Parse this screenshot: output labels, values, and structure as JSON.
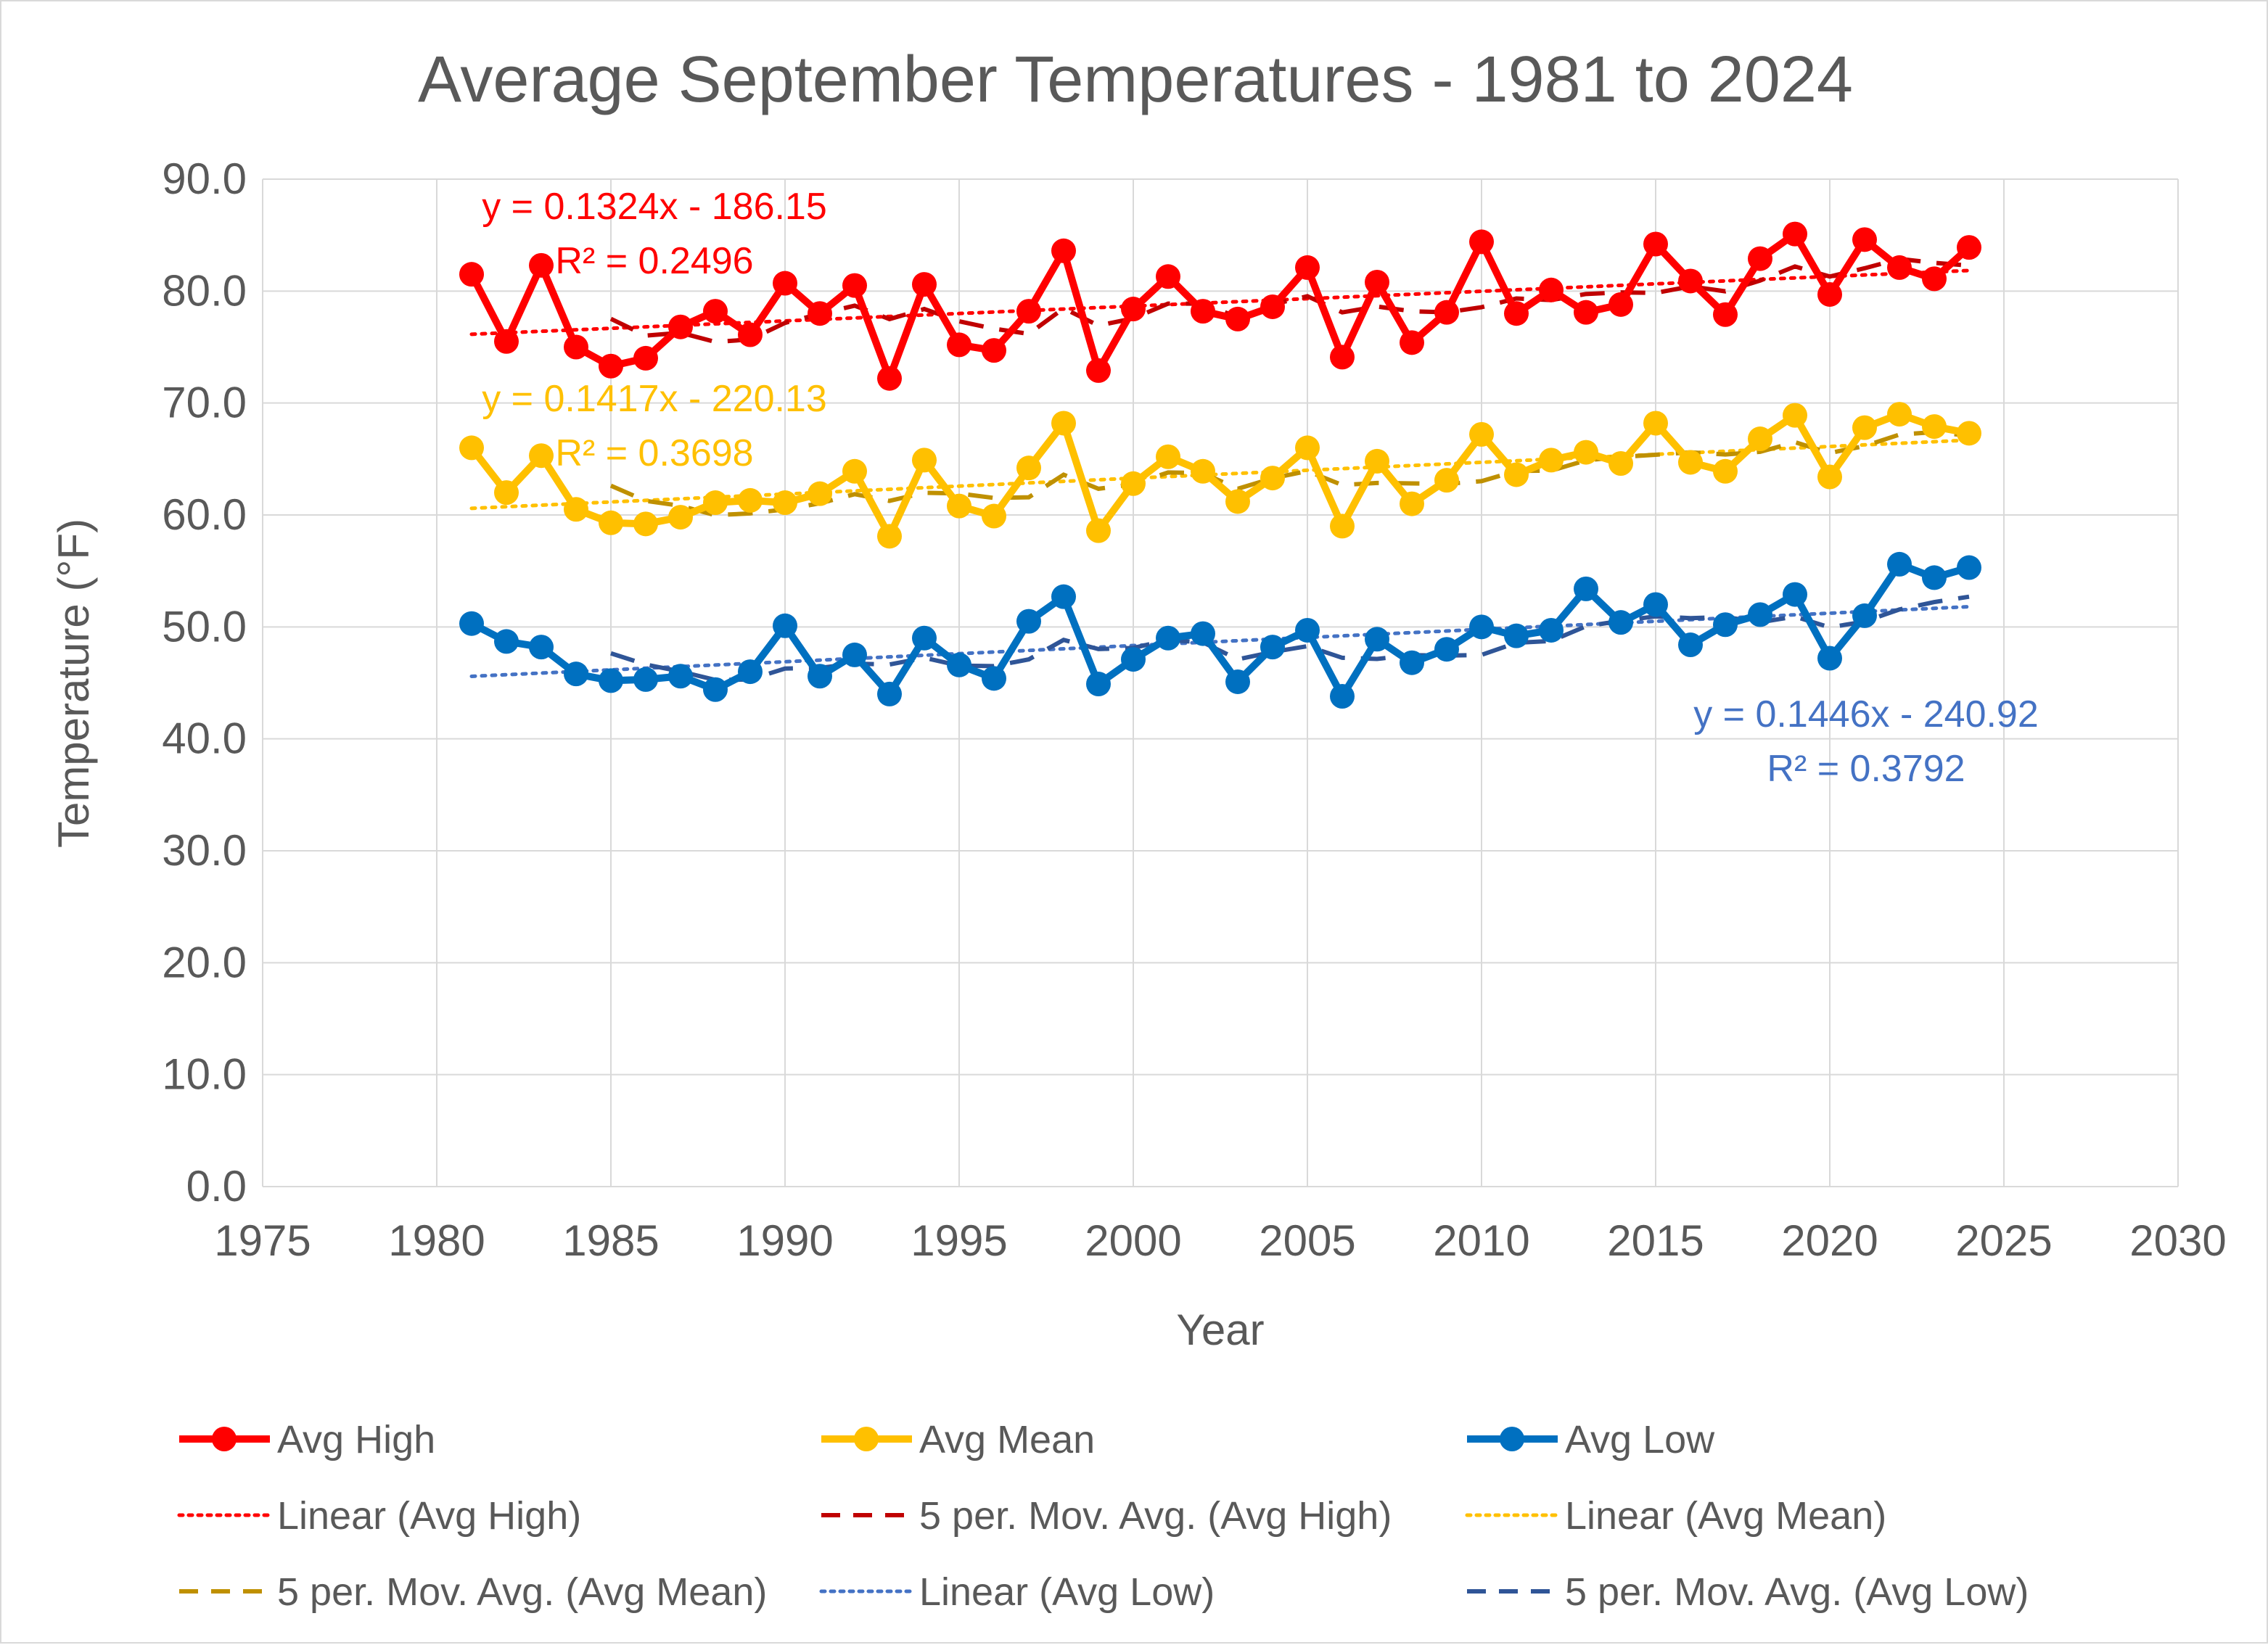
{
  "chart_data": {
    "type": "line",
    "title": "Average September Temperatures - 1981 to 2024",
    "xlabel": "Year",
    "ylabel": "Temperature (°F)",
    "xlim": [
      1975,
      2030
    ],
    "ylim": [
      0,
      90
    ],
    "x_ticks": [
      "1975",
      "1980",
      "1985",
      "1990",
      "1995",
      "2000",
      "2005",
      "2010",
      "2015",
      "2020",
      "2025",
      "2030"
    ],
    "y_ticks": [
      "0.0",
      "10.0",
      "20.0",
      "30.0",
      "40.0",
      "50.0",
      "60.0",
      "70.0",
      "80.0",
      "90.0"
    ],
    "grid": true,
    "x": [
      1981,
      1982,
      1983,
      1984,
      1985,
      1986,
      1987,
      1988,
      1989,
      1990,
      1991,
      1992,
      1993,
      1994,
      1995,
      1996,
      1997,
      1998,
      1999,
      2000,
      2001,
      2002,
      2003,
      2004,
      2005,
      2006,
      2007,
      2008,
      2009,
      2010,
      2011,
      2012,
      2013,
      2014,
      2015,
      2016,
      2017,
      2018,
      2019,
      2020,
      2021,
      2022,
      2023,
      2024
    ],
    "series": [
      {
        "name": "Avg High",
        "color": "#ff0000",
        "values": [
          81.5,
          75.5,
          82.3,
          75.0,
          73.3,
          74.0,
          76.8,
          78.2,
          76.1,
          80.7,
          78.0,
          80.5,
          72.2,
          80.6,
          75.2,
          74.7,
          78.2,
          83.6,
          72.9,
          78.4,
          81.3,
          78.2,
          77.5,
          78.6,
          82.1,
          74.1,
          80.8,
          75.4,
          78.1,
          84.4,
          78.0,
          80.1,
          78.1,
          78.8,
          84.2,
          80.9,
          77.9,
          82.9,
          85.1,
          79.7,
          84.6,
          82.1,
          81.1,
          83.9
        ]
      },
      {
        "name": "Avg Mean",
        "color": "#ffc000",
        "values": [
          66.0,
          62.0,
          65.3,
          60.5,
          59.3,
          59.2,
          59.8,
          61.1,
          61.3,
          61.1,
          61.9,
          63.9,
          58.1,
          64.9,
          60.8,
          59.9,
          64.2,
          68.2,
          58.6,
          62.8,
          65.2,
          63.9,
          61.2,
          63.3,
          66.0,
          59.0,
          64.8,
          61.0,
          63.1,
          67.2,
          63.6,
          64.9,
          65.6,
          64.6,
          68.2,
          64.7,
          63.9,
          66.8,
          68.9,
          63.4,
          67.8,
          69.0,
          67.9,
          67.3
        ]
      },
      {
        "name": "Avg Low",
        "color": "#0070c0",
        "values": [
          50.3,
          48.7,
          48.2,
          45.8,
          45.2,
          45.3,
          45.6,
          44.4,
          46.0,
          50.1,
          45.6,
          47.5,
          44.0,
          49.0,
          46.6,
          45.4,
          50.5,
          52.7,
          44.9,
          47.1,
          49.0,
          49.4,
          45.1,
          48.2,
          49.7,
          43.8,
          48.9,
          46.8,
          48.0,
          50.0,
          49.2,
          49.7,
          53.4,
          50.4,
          52.0,
          48.4,
          50.2,
          51.1,
          52.9,
          47.2,
          51.0,
          55.6,
          54.4,
          55.3
        ]
      }
    ],
    "trendlines": [
      {
        "name": "Linear (Avg High)",
        "series": "Avg High",
        "kind": "linear",
        "slope": 0.1324,
        "intercept": -186.15,
        "color": "#ff0000",
        "equation": "y = 0.1324x - 186.15",
        "r2": "R² = 0.2496"
      },
      {
        "name": "5 per. Mov. Avg. (Avg High)",
        "series": "Avg High",
        "kind": "moving_average",
        "period": 5,
        "color": "#c00000"
      },
      {
        "name": "Linear (Avg Mean)",
        "series": "Avg Mean",
        "kind": "linear",
        "slope": 0.1417,
        "intercept": -220.13,
        "color": "#ffc000",
        "equation": "y = 0.1417x - 220.13",
        "r2": "R² = 0.3698"
      },
      {
        "name": "5 per. Mov. Avg. (Avg Mean)",
        "series": "Avg Mean",
        "kind": "moving_average",
        "period": 5,
        "color": "#bf9000"
      },
      {
        "name": "Linear (Avg Low)",
        "series": "Avg Low",
        "kind": "linear",
        "slope": 0.1446,
        "intercept": -240.92,
        "color": "#4472c4",
        "equation": "y = 0.1446x - 240.92",
        "r2": "R² = 0.3792"
      },
      {
        "name": "5 per. Mov. Avg. (Avg Low)",
        "series": "Avg Low",
        "kind": "moving_average",
        "period": 5,
        "color": "#2f5597"
      }
    ],
    "legend": {
      "placement": "bottom",
      "entries": [
        {
          "label": "Avg High",
          "color": "#ff0000",
          "style": "marker-line"
        },
        {
          "label": "Avg Mean",
          "color": "#ffc000",
          "style": "marker-line"
        },
        {
          "label": "Avg Low",
          "color": "#0070c0",
          "style": "marker-line"
        },
        {
          "label": "Linear (Avg High)",
          "color": "#ff0000",
          "style": "dotted"
        },
        {
          "label": "5 per. Mov. Avg. (Avg High)",
          "color": "#c00000",
          "style": "dashed"
        },
        {
          "label": "Linear (Avg Mean)",
          "color": "#ffc000",
          "style": "dotted"
        },
        {
          "label": "5 per. Mov. Avg. (Avg Mean)",
          "color": "#bf9000",
          "style": "dashed"
        },
        {
          "label": "Linear (Avg Low)",
          "color": "#4472c4",
          "style": "dotted"
        },
        {
          "label": "5 per. Mov. Avg. (Avg Low)",
          "color": "#2f5597",
          "style": "dashed"
        }
      ]
    }
  }
}
